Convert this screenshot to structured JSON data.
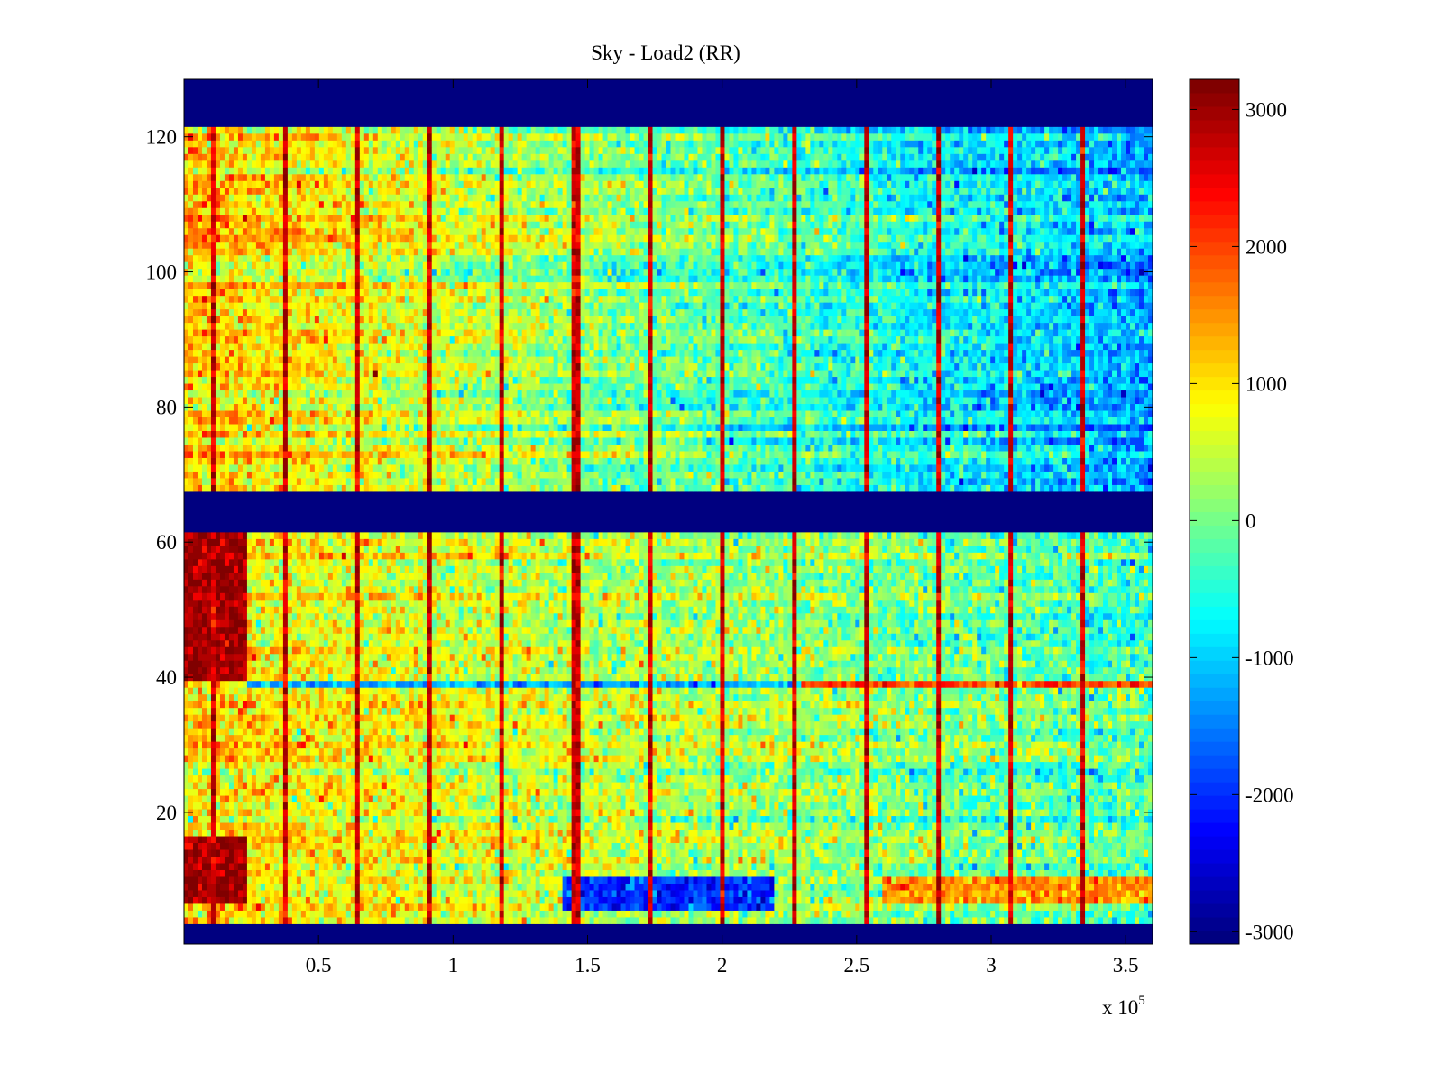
{
  "chart_data": {
    "type": "heatmap",
    "title": "Sky - Load2 (RR)",
    "xlabel": "",
    "ylabel": "",
    "x_exponent_label": {
      "base": "x 10",
      "exp": "5"
    },
    "xlim": [
      0,
      360000
    ],
    "ylim": [
      0.5,
      128.5
    ],
    "x_ticks": [
      50000,
      100000,
      150000,
      200000,
      250000,
      300000,
      350000
    ],
    "x_tick_labels": [
      "0.5",
      "1",
      "1.5",
      "2",
      "2.5",
      "3",
      "3.5"
    ],
    "y_ticks": [
      20,
      40,
      60,
      80,
      100,
      120
    ],
    "y_tick_labels": [
      "20",
      "40",
      "60",
      "80",
      "100",
      "120"
    ],
    "colormap": "jet",
    "clim": [
      -3090,
      3220
    ],
    "colorbar": {
      "ticks": [
        -3000,
        -2000,
        -1000,
        0,
        1000,
        2000,
        3000
      ],
      "tick_labels": [
        "-3000",
        "-2000",
        "-1000",
        "0",
        "1000",
        "2000",
        "3000"
      ],
      "placement": "right"
    },
    "grid": false,
    "rows": 128,
    "columns": 215,
    "masked_rows": [
      [
        1,
        3
      ],
      [
        62,
        67
      ],
      [
        122,
        128
      ]
    ],
    "masked_value": -3090,
    "blocks": [
      {
        "rows": [
          68,
          121
        ],
        "value_at_x_start": 1150,
        "value_at_x_end": -1300,
        "noise": 420
      },
      {
        "rows": [
          4,
          61
        ],
        "value_at_x_start": 950,
        "value_at_x_end": -350,
        "noise": 450
      }
    ],
    "features": [
      {
        "kind": "saturated",
        "rows": [
          40,
          61
        ],
        "x_range": [
          0,
          23000
        ],
        "value": 3000
      },
      {
        "kind": "saturated",
        "rows": [
          7,
          16
        ],
        "x_range": [
          0,
          23000
        ],
        "value": 3000
      },
      {
        "kind": "row-offset",
        "rows": [
          39,
          39
        ],
        "x_range": [
          23000,
          230000
        ],
        "value": -1300
      },
      {
        "kind": "row-offset",
        "rows": [
          39,
          39
        ],
        "x_range": [
          230000,
          360000
        ],
        "value": 2000
      },
      {
        "kind": "row-offset",
        "rows": [
          6,
          10
        ],
        "x_range": [
          140000,
          220000
        ],
        "value": -2000
      },
      {
        "kind": "row-offset",
        "rows": [
          7,
          10
        ],
        "x_range": [
          260000,
          360000
        ],
        "value": 1500
      }
    ],
    "stripe_x": [
      10400,
      37500,
      64600,
      91700,
      118600,
      145700,
      172800,
      199600,
      226700,
      253900,
      280600,
      307400,
      334200
    ],
    "stripe_value": 2700
  }
}
